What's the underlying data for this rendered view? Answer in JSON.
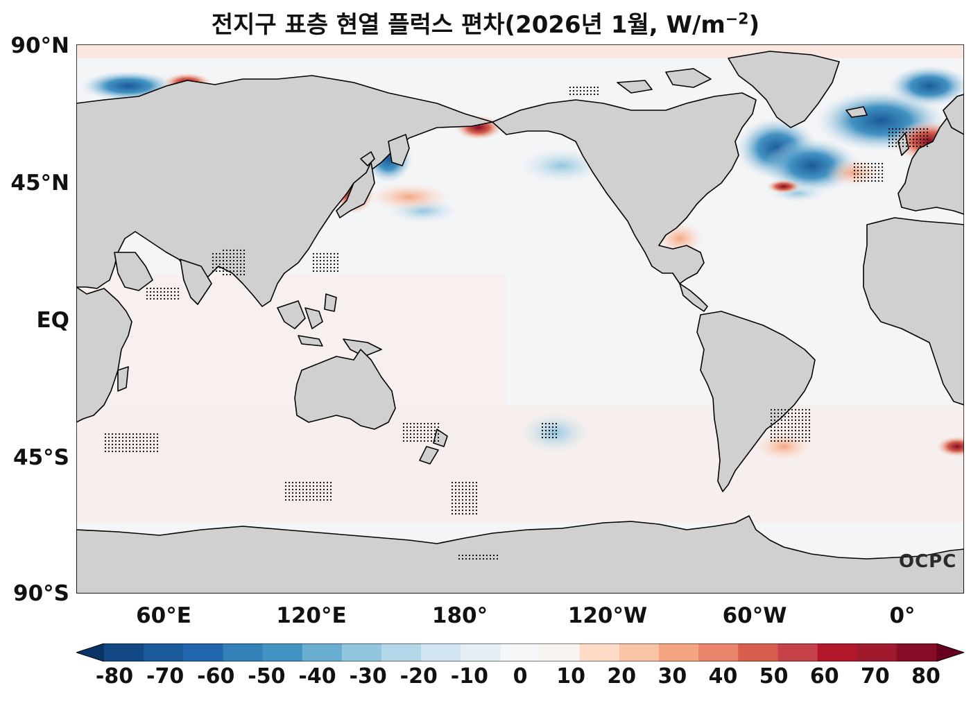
{
  "title": "전지구 표층 현열 플럭스 편차(2026년 1월, W/m",
  "title_sup": "−2",
  "title_end": ")",
  "lat_labels": [
    "90°N",
    "45°N",
    "EQ",
    "45°S",
    "90°S"
  ],
  "lon_labels": [
    "60°E",
    "120°E",
    "180°",
    "120°W",
    "60°W",
    "0°"
  ],
  "colorbar": {
    "ticks": [
      "-80",
      "-70",
      "-60",
      "-50",
      "-40",
      "-30",
      "-20",
      "-10",
      "0",
      "10",
      "20",
      "30",
      "40",
      "50",
      "60",
      "70",
      "80"
    ],
    "colors": [
      "#0b3466",
      "#124984",
      "#1b5a9b",
      "#2166ac",
      "#3480b9",
      "#4393c3",
      "#6aaed1",
      "#92c5de",
      "#b3d6e8",
      "#d1e5f0",
      "#e4eef4",
      "#f4f6f7",
      "#f7f4f0",
      "#fddbc7",
      "#f9c3a7",
      "#f4a582",
      "#e8856a",
      "#d6604d",
      "#c6424a",
      "#b2182b",
      "#9e1a2c",
      "#850d26",
      "#67001f"
    ],
    "cmap": "RdBu_r",
    "range": [
      -80,
      80
    ]
  },
  "logo": "OCPC",
  "colors": {
    "land": "#d0d0d0",
    "ocean_neutral": "#f4f5f7",
    "coast": "#000000"
  }
}
